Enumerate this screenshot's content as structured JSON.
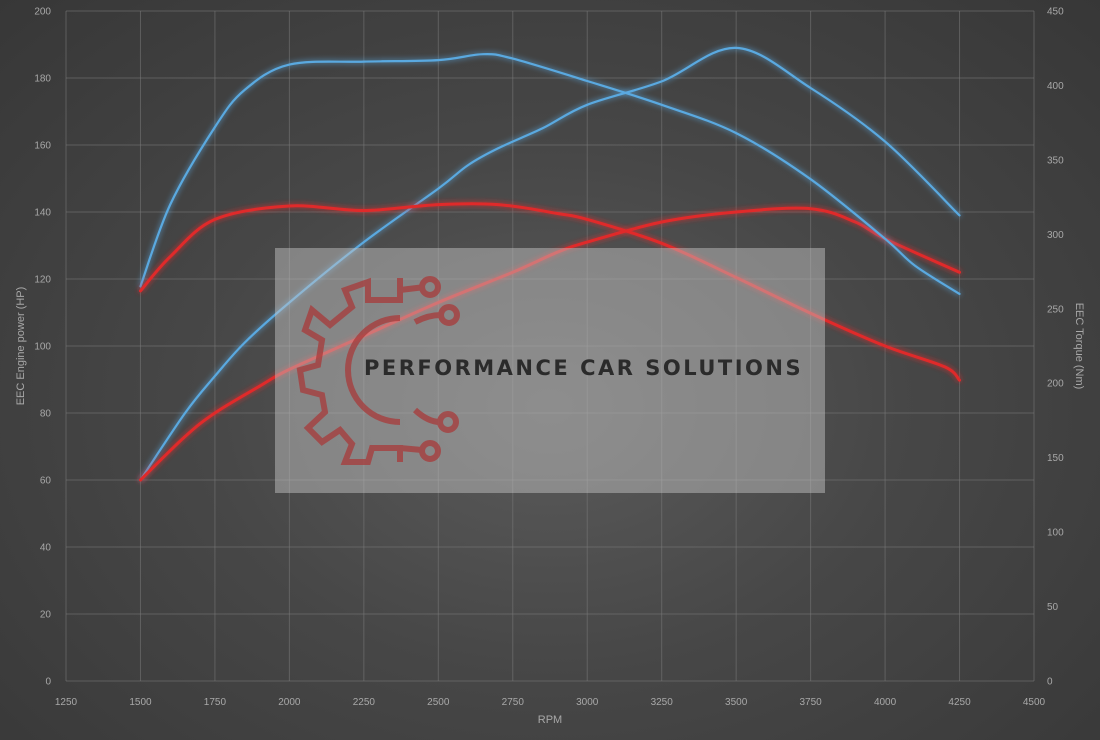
{
  "chart_data": {
    "type": "line",
    "xlabel": "RPM",
    "ylabel_left": "EEC Engine power (HP)",
    "ylabel_right": "EEC Torque (Nm)",
    "xlim": [
      1250,
      4500
    ],
    "ylim_left": [
      0,
      200
    ],
    "ylim_right": [
      0,
      450
    ],
    "x_ticks": [
      "1250",
      "1500",
      "1750",
      "2000",
      "2250",
      "2500",
      "2750",
      "3000",
      "3250",
      "3500",
      "3750",
      "4000",
      "4250",
      "4500"
    ],
    "y_ticks_left": [
      "0",
      "20",
      "40",
      "60",
      "80",
      "100",
      "120",
      "140",
      "160",
      "180",
      "200"
    ],
    "y_ticks_right": [
      "0",
      "50",
      "100",
      "150",
      "200",
      "250",
      "300",
      "350",
      "400",
      "450"
    ],
    "grid": true,
    "colors": {
      "tuned": "#5aa9e0",
      "stock": "#e0292b"
    },
    "series": [
      {
        "axis": "left",
        "color": "tuned",
        "x": [
          1500,
          1650,
          1750,
          1850,
          2000,
          2250,
          2500,
          2600,
          2700,
          2850,
          3000,
          3250,
          3500,
          3750,
          4000,
          4250
        ],
        "values": [
          60,
          80,
          91,
          101,
          113,
          131,
          147,
          154,
          159,
          165,
          172,
          179,
          189,
          177,
          161,
          139
        ]
      },
      {
        "axis": "left",
        "color": "stock",
        "x": [
          1500,
          1650,
          1750,
          1900,
          2000,
          2250,
          2500,
          2750,
          2900,
          3000,
          3250,
          3500,
          3750,
          3900,
          4000,
          4250
        ],
        "values": [
          60,
          73,
          80,
          88,
          93,
          103,
          113,
          122,
          128,
          131,
          137,
          140,
          141,
          137,
          132,
          122
        ]
      },
      {
        "axis": "right",
        "color": "tuned",
        "x": [
          1500,
          1600,
          1750,
          1850,
          2000,
          2250,
          2500,
          2650,
          2750,
          3000,
          3250,
          3500,
          3750,
          4000,
          4100,
          4250
        ],
        "values": [
          265,
          320,
          372,
          397,
          414,
          416,
          417,
          421,
          418,
          403,
          387,
          368,
          337,
          297,
          279,
          260
        ]
      },
      {
        "axis": "right",
        "color": "stock",
        "x": [
          1500,
          1600,
          1750,
          2000,
          2250,
          2500,
          2700,
          2900,
          3000,
          3250,
          3500,
          3750,
          4000,
          4200,
          4250
        ],
        "values": [
          262,
          285,
          310,
          319,
          316,
          320,
          320,
          314,
          310,
          294,
          271,
          247,
          225,
          211,
          202
        ]
      }
    ]
  },
  "brand": {
    "name": "PERFORMANCE CAR SOLUTIONS",
    "logo_icon": "gear-circuit-icon"
  }
}
